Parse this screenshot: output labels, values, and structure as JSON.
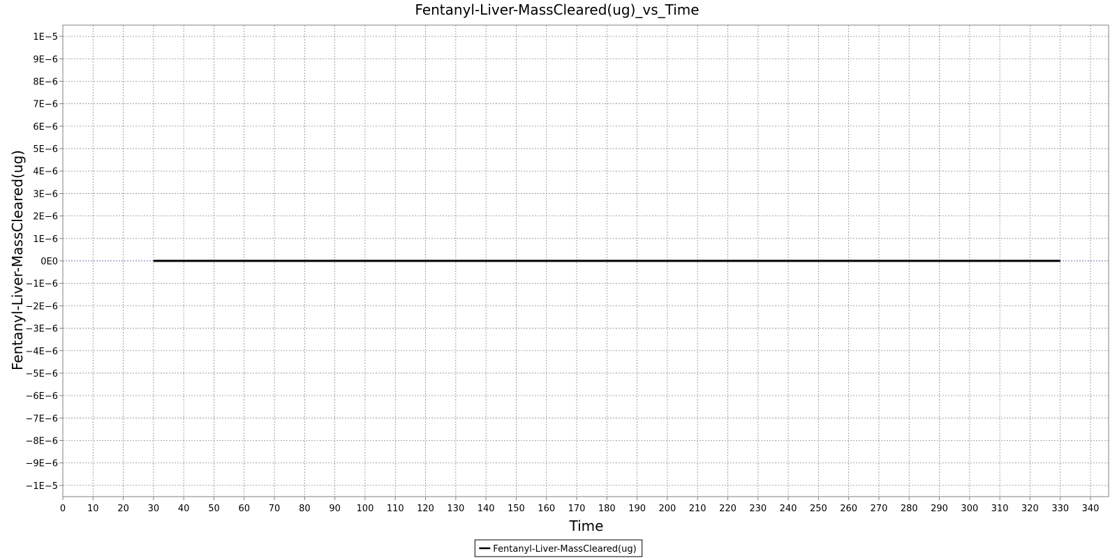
{
  "chart_data": {
    "type": "line",
    "title": "Fentanyl-Liver-MassCleared(ug)_vs_Time",
    "xlabel": "Time",
    "ylabel": "Fentanyl-Liver-MassCleared(ug)",
    "xlim": [
      0,
      346
    ],
    "ylim": [
      -1.05e-05,
      1.05e-05
    ],
    "x_ticks": [
      0,
      10,
      20,
      30,
      40,
      50,
      60,
      70,
      80,
      90,
      100,
      110,
      120,
      130,
      140,
      150,
      160,
      170,
      180,
      190,
      200,
      210,
      220,
      230,
      240,
      250,
      260,
      270,
      280,
      290,
      300,
      310,
      320,
      330,
      340
    ],
    "x_tick_labels": [
      "0",
      "10",
      "20",
      "30",
      "40",
      "50",
      "60",
      "70",
      "80",
      "90",
      "100",
      "110",
      "120",
      "130",
      "140",
      "150",
      "160",
      "170",
      "180",
      "190",
      "200",
      "210",
      "220",
      "230",
      "240",
      "250",
      "260",
      "270",
      "280",
      "290",
      "300",
      "310",
      "320",
      "330",
      "340"
    ],
    "y_ticks": [
      1e-05,
      9e-06,
      8e-06,
      7e-06,
      6e-06,
      5e-06,
      4e-06,
      3e-06,
      2e-06,
      1e-06,
      0,
      -1e-06,
      -2e-06,
      -3e-06,
      -4e-06,
      -5e-06,
      -6e-06,
      -7e-06,
      -8e-06,
      -9e-06,
      -1e-05
    ],
    "y_tick_labels": [
      "1E−5",
      "9E−6",
      "8E−6",
      "7E−6",
      "6E−6",
      "5E−6",
      "4E−6",
      "3E−6",
      "2E−6",
      "1E−6",
      "0E0",
      "−1E−6",
      "−2E−6",
      "−3E−6",
      "−4E−6",
      "−5E−6",
      "−6E−6",
      "−7E−6",
      "−8E−6",
      "−9E−6",
      "−1E−5"
    ],
    "grid": true,
    "legend_position": "bottom-center",
    "series": [
      {
        "name": "Fentanyl-Liver-MassCleared(ug)",
        "color": "#000000",
        "x": [
          30,
          330
        ],
        "y": [
          0,
          0
        ]
      }
    ]
  }
}
